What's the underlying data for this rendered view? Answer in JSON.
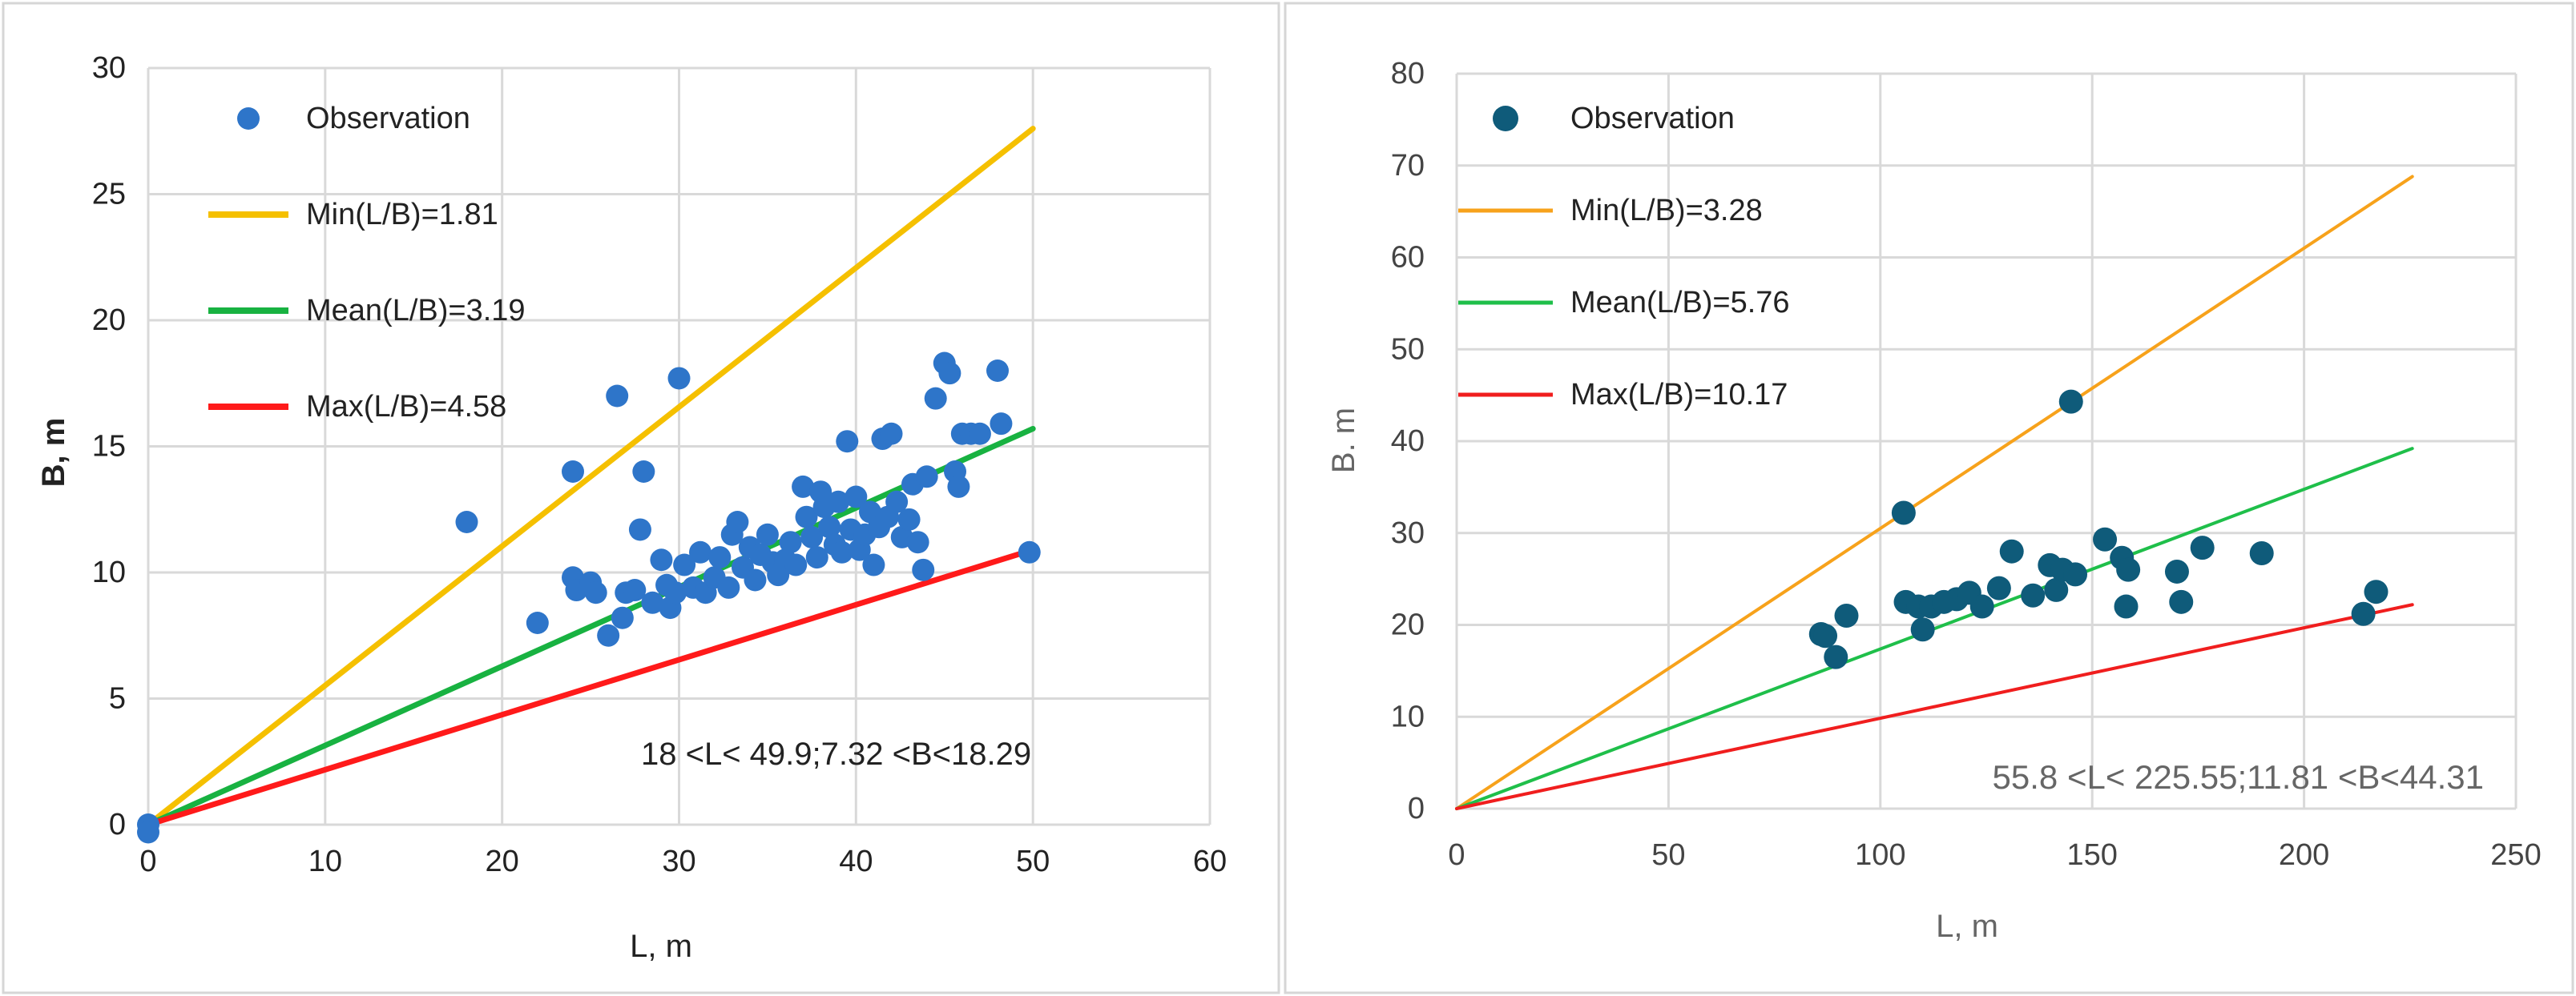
{
  "chart_data": [
    {
      "type": "scatter",
      "xlabel": "L, m",
      "ylabel": "B, m",
      "xlim": [
        0,
        60
      ],
      "ylim": [
        0,
        30
      ],
      "xticks": [
        0,
        10,
        20,
        30,
        40,
        50,
        60
      ],
      "yticks": [
        0,
        5,
        10,
        15,
        20,
        25,
        30
      ],
      "grid": true,
      "legend_position": "top-left",
      "legend": [
        {
          "label": "Observation",
          "kind": "marker",
          "color": "#2e75c9"
        },
        {
          "label": "Min(L/B)=1.81",
          "kind": "line",
          "color": "#f5c000"
        },
        {
          "label": "Mean(L/B)=3.19",
          "kind": "line",
          "color": "#18b241"
        },
        {
          "label": "Max(L/B)=4.58",
          "kind": "line",
          "color": "#ff1a1a"
        }
      ],
      "annotation": "18 <L< 49.9;7.32  <B<18.29",
      "lines": [
        {
          "name": "Min(L/B)=1.81",
          "color": "#f5c000",
          "x": [
            0,
            50
          ],
          "y": [
            0,
            27.6
          ]
        },
        {
          "name": "Mean(L/B)=3.19",
          "color": "#18b241",
          "x": [
            0,
            50
          ],
          "y": [
            0,
            15.7
          ]
        },
        {
          "name": "Max(L/B)=4.58",
          "color": "#ff1a1a",
          "x": [
            0,
            50
          ],
          "y": [
            0,
            10.9
          ]
        }
      ],
      "series": [
        {
          "name": "Observation",
          "color": "#2e75c9",
          "points": [
            [
              0,
              0
            ],
            [
              0,
              -0.3
            ],
            [
              18,
              12
            ],
            [
              22,
              8
            ],
            [
              24,
              14
            ],
            [
              24,
              9.8
            ],
            [
              24.2,
              9.3
            ],
            [
              25,
              9.6
            ],
            [
              25.3,
              9.2
            ],
            [
              26,
              7.5
            ],
            [
              26.5,
              17
            ],
            [
              26.8,
              8.2
            ],
            [
              27,
              9.2
            ],
            [
              27.5,
              9.3
            ],
            [
              27.8,
              11.7
            ],
            [
              28,
              14
            ],
            [
              28.5,
              8.8
            ],
            [
              29,
              10.5
            ],
            [
              29.3,
              9.5
            ],
            [
              29.5,
              8.6
            ],
            [
              29.8,
              9.2
            ],
            [
              30,
              17.7
            ],
            [
              30.3,
              10.3
            ],
            [
              30.8,
              9.4
            ],
            [
              31.2,
              10.8
            ],
            [
              31.5,
              9.2
            ],
            [
              32,
              9.8
            ],
            [
              32.3,
              10.6
            ],
            [
              32.8,
              9.4
            ],
            [
              33,
              11.5
            ],
            [
              33.3,
              12
            ],
            [
              33.6,
              10.2
            ],
            [
              34,
              11
            ],
            [
              34.3,
              9.7
            ],
            [
              34.6,
              10.7
            ],
            [
              35,
              11.5
            ],
            [
              35.3,
              10.4
            ],
            [
              35.6,
              9.9
            ],
            [
              36,
              10.5
            ],
            [
              36.3,
              11.2
            ],
            [
              36.6,
              10.3
            ],
            [
              37,
              13.4
            ],
            [
              37.2,
              12.2
            ],
            [
              37.5,
              11.4
            ],
            [
              37.8,
              10.6
            ],
            [
              38,
              13.2
            ],
            [
              38.2,
              12.6
            ],
            [
              38.5,
              11.8
            ],
            [
              38.8,
              11.1
            ],
            [
              39,
              12.8
            ],
            [
              39.2,
              10.8
            ],
            [
              39.5,
              15.2
            ],
            [
              39.7,
              11.7
            ],
            [
              40,
              13
            ],
            [
              40.2,
              10.9
            ],
            [
              40.5,
              11.5
            ],
            [
              40.8,
              12.4
            ],
            [
              41,
              10.3
            ],
            [
              41.3,
              11.8
            ],
            [
              41.5,
              15.3
            ],
            [
              41.8,
              12.2
            ],
            [
              42,
              15.5
            ],
            [
              42.3,
              12.8
            ],
            [
              42.6,
              11.4
            ],
            [
              43,
              12.1
            ],
            [
              43.2,
              13.5
            ],
            [
              43.5,
              11.2
            ],
            [
              43.8,
              10.1
            ],
            [
              44,
              13.8
            ],
            [
              44.5,
              16.9
            ],
            [
              45,
              18.3
            ],
            [
              45.3,
              17.9
            ],
            [
              45.6,
              14
            ],
            [
              45.8,
              13.4
            ],
            [
              46,
              15.5
            ],
            [
              46.5,
              15.5
            ],
            [
              47,
              15.5
            ],
            [
              48,
              18
            ],
            [
              48.2,
              15.9
            ],
            [
              49.8,
              10.8
            ]
          ]
        }
      ]
    },
    {
      "type": "scatter",
      "xlabel": "L, m",
      "ylabel": "B. m",
      "xlim": [
        0,
        250
      ],
      "ylim": [
        0,
        80
      ],
      "xticks": [
        0,
        50,
        100,
        150,
        200,
        250
      ],
      "yticks": [
        0,
        10,
        20,
        30,
        40,
        50,
        60,
        70,
        80
      ],
      "grid": true,
      "legend_position": "top-left",
      "legend": [
        {
          "label": "Observation",
          "kind": "marker",
          "color": "#0f5b7a"
        },
        {
          "label": "Min(L/B)=3.28",
          "kind": "line",
          "color": "#f7a21b"
        },
        {
          "label": "Mean(L/B)=5.76",
          "kind": "line",
          "color": "#1fbf4a"
        },
        {
          "label": "Max(L/B)=10.17",
          "kind": "line",
          "color": "#f01e1e"
        }
      ],
      "annotation": "55.8 <L< 225.55;11.81  <B<44.31",
      "lines": [
        {
          "name": "Min(L/B)=3.28",
          "color": "#f7a21b",
          "x": [
            0,
            225.55
          ],
          "y": [
            0,
            68.8
          ]
        },
        {
          "name": "Mean(L/B)=5.76",
          "color": "#1fbf4a",
          "x": [
            0,
            225.55
          ],
          "y": [
            0,
            39.2
          ]
        },
        {
          "name": "Max(L/B)=10.17",
          "color": "#f01e1e",
          "x": [
            0,
            225.55
          ],
          "y": [
            0,
            22.2
          ]
        }
      ],
      "series": [
        {
          "name": "Observation",
          "color": "#0f5b7a",
          "points": [
            [
              86,
              19
            ],
            [
              87,
              18.8
            ],
            [
              89.5,
              16.5
            ],
            [
              92,
              21
            ],
            [
              105.5,
              32.2
            ],
            [
              106,
              22.5
            ],
            [
              109,
              22
            ],
            [
              110,
              19.5
            ],
            [
              112,
              22
            ],
            [
              115,
              22.5
            ],
            [
              118,
              22.8
            ],
            [
              121,
              23.5
            ],
            [
              124,
              22
            ],
            [
              128,
              24
            ],
            [
              131,
              28
            ],
            [
              136,
              23.2
            ],
            [
              140,
              26.5
            ],
            [
              141.5,
              23.8
            ],
            [
              143,
              26
            ],
            [
              145,
              44.3
            ],
            [
              146,
              25.5
            ],
            [
              153,
              29.3
            ],
            [
              157,
              27.3
            ],
            [
              158,
              22
            ],
            [
              158.5,
              26
            ],
            [
              170,
              25.8
            ],
            [
              171,
              22.5
            ],
            [
              176,
              28.4
            ],
            [
              190,
              27.8
            ],
            [
              214,
              21.2
            ],
            [
              217,
              23.6
            ]
          ]
        }
      ]
    }
  ]
}
